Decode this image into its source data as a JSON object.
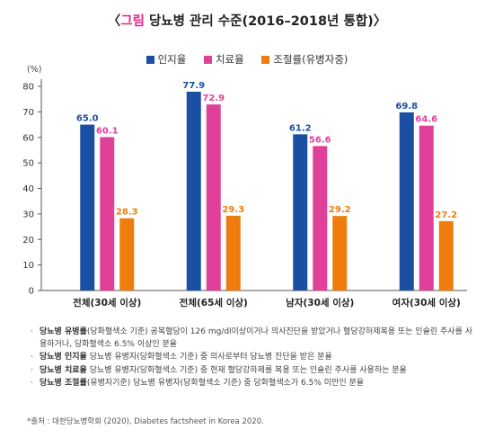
{
  "title": {
    "prefix": "〈",
    "accent": "그림",
    "main": " 당뇨병 관리 수준(2016–2018년 통합)",
    "suffix": "〉"
  },
  "unit_label": "(%)",
  "chart_data": {
    "type": "bar",
    "categories": [
      "전체(30세 이상)",
      "전체(65세 이상)",
      "남자(30세 이상)",
      "여자(30세 이상)"
    ],
    "series": [
      {
        "name": "인지율",
        "color": "#1a4fa3",
        "values": [
          65.0,
          77.9,
          61.2,
          69.8
        ]
      },
      {
        "name": "치료율",
        "color": "#e0409a",
        "values": [
          60.1,
          72.9,
          56.6,
          64.6
        ]
      },
      {
        "name": "조절률(유병자중)",
        "color": "#ee7d0e",
        "values": [
          28.3,
          29.3,
          29.2,
          27.2
        ]
      }
    ],
    "ylim": [
      0,
      80
    ],
    "yticks": [
      0,
      10,
      20,
      30,
      40,
      50,
      60,
      70,
      80
    ],
    "grid": false,
    "legend_position": "top-center"
  },
  "notes": [
    {
      "term": "당뇨병 유병률",
      "text": "(당화혈색소 기준) 공복혈당이 126 mg/dl이상이거나 의사진단을 받았거나 혈당강하제복용 또는 인슐린 주사를 사용하거나, 당화혈색소 6.5% 이상인 분율"
    },
    {
      "term": "당뇨병 인지율",
      "text": " 당뇨병 유병자(당화혈색소 기준) 중 의사로부터 당뇨병 진단을 받은 분율"
    },
    {
      "term": "당뇨병 치료율",
      "text": " 당뇨병 유병자(당화혈색소 기준) 중 현재 혈당강하제를 복용 또는 인슐린 주사를 사용하는 분율"
    },
    {
      "term": "당뇨병 조절률",
      "text": "(유병자기준) 당뇨병 유병자(당화혈색소 기준) 중 당화혈색소가 6.5% 미만인 분율"
    }
  ],
  "note_bullet": "·",
  "source": "*출처 : 대한당뇨병학회 (2020), Diabetes factsheet in Korea 2020."
}
